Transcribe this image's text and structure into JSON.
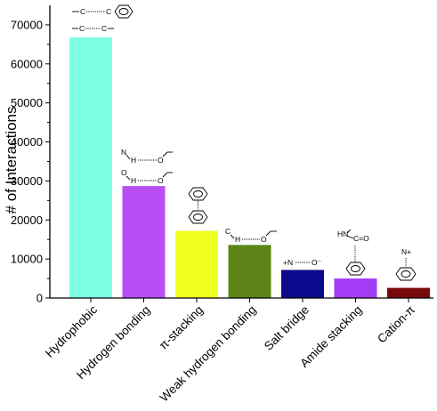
{
  "chart_data": {
    "type": "bar",
    "title": "",
    "xlabel": "",
    "ylabel": "# of Interactions",
    "ylim": [
      0,
      75000
    ],
    "yticks": [
      0,
      10000,
      20000,
      30000,
      40000,
      50000,
      60000,
      70000
    ],
    "grid": false,
    "legend": "none",
    "categories": [
      "Hydrophobic",
      "Hydrogen bonding",
      "π-stacking",
      "Weak hydrogen bonding",
      "Salt bridge",
      "Amide stacking",
      "Cation-π"
    ],
    "values": [
      66800,
      28700,
      17200,
      13600,
      7200,
      5000,
      2600
    ],
    "colors": [
      "#7fffe4",
      "#b94ef4",
      "#efff1f",
      "#5d8519",
      "#0b0a8c",
      "#a23cf5",
      "#7a0a0a"
    ],
    "icon_labels": {
      "hydrophobic": [
        "C",
        "C",
        "C",
        "C"
      ],
      "hbond_top": [
        "N",
        "H",
        "O"
      ],
      "hbond_bottom": [
        "O",
        "H",
        "O"
      ],
      "weak_hbond": [
        "C",
        "H",
        "O"
      ],
      "salt_bridge": [
        "+N",
        "O⁻"
      ],
      "amide": [
        "HN",
        "C=O"
      ],
      "cation": [
        "N+"
      ]
    }
  }
}
